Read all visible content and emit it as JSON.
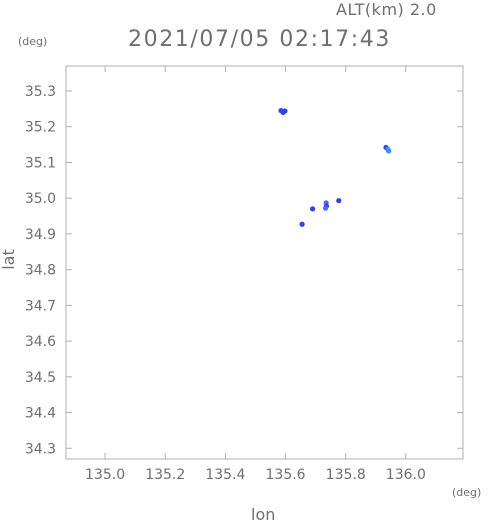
{
  "header": {
    "altitude": "ALT(km) 2.0",
    "timestamp": "2021/07/05 02:17:43"
  },
  "chart_data": {
    "type": "scatter",
    "title": "",
    "xlabel": "lon",
    "ylabel": "lat",
    "xunit": "(deg)",
    "yunit": "(deg)",
    "xlim": [
      134.87,
      136.19
    ],
    "ylim": [
      34.27,
      35.37
    ],
    "xticks": [
      135.0,
      135.2,
      135.4,
      135.6,
      135.8,
      136.0
    ],
    "xtick_labels": [
      "135.0",
      "135.2",
      "135.4",
      "135.6",
      "135.8",
      "136.0"
    ],
    "yticks": [
      34.3,
      34.4,
      34.5,
      34.6,
      34.7,
      34.8,
      34.9,
      35.0,
      35.1,
      35.2,
      35.3
    ],
    "ytick_labels": [
      "34.3",
      "34.4",
      "34.5",
      "34.6",
      "34.7",
      "34.8",
      "34.9",
      "35.0",
      "35.1",
      "35.2",
      "35.3"
    ],
    "grid": false,
    "colors": {
      "frame": "#b0b0b0",
      "text": "#6f6f6f",
      "echo_strong": "#3a3af0",
      "echo_medium": "#4d6cf5",
      "echo_light": "#3d8ff5"
    },
    "points": [
      {
        "lon": 135.585,
        "lat": 35.245,
        "level": "strong"
      },
      {
        "lon": 135.598,
        "lat": 35.244,
        "level": "strong"
      },
      {
        "lon": 135.592,
        "lat": 35.24,
        "level": "strong"
      },
      {
        "lon": 135.934,
        "lat": 35.142,
        "level": "strong"
      },
      {
        "lon": 135.94,
        "lat": 35.137,
        "level": "light"
      },
      {
        "lon": 135.943,
        "lat": 35.132,
        "level": "light"
      },
      {
        "lon": 135.735,
        "lat": 34.987,
        "level": "medium"
      },
      {
        "lon": 135.736,
        "lat": 34.978,
        "level": "strong"
      },
      {
        "lon": 135.733,
        "lat": 34.972,
        "level": "medium"
      },
      {
        "lon": 135.777,
        "lat": 34.993,
        "level": "strong"
      },
      {
        "lon": 135.655,
        "lat": 34.927,
        "level": "strong"
      },
      {
        "lon": 135.69,
        "lat": 34.97,
        "level": "strong"
      }
    ]
  }
}
